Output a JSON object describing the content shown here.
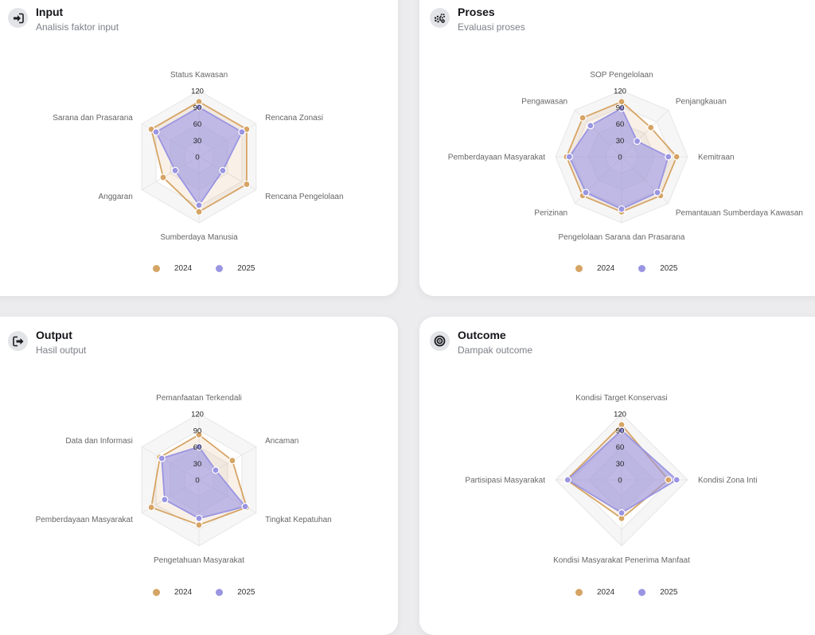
{
  "legend": [
    "2024",
    "2025"
  ],
  "colors": {
    "y2024": "#d6a465",
    "y2025": "#9a95e2"
  },
  "cards": [
    {
      "title": "Input",
      "subtitle": "Analisis faktor input",
      "icon": "sign-in-icon"
    },
    {
      "title": "Proses",
      "subtitle": "Evaluasi proses",
      "icon": "gears-icon"
    },
    {
      "title": "Output",
      "subtitle": "Hasil output",
      "icon": "sign-out-icon"
    },
    {
      "title": "Outcome",
      "subtitle": "Dampak outcome",
      "icon": "target-icon"
    }
  ],
  "chart_data": [
    {
      "type": "radar",
      "categories": [
        "Status Kawasan",
        "Rencana Zonasi",
        "Rencana Pengelolaan",
        "Sumberdaya Manusia",
        "Anggaran",
        "Sarana dan Prasarana"
      ],
      "ticks": [
        "0",
        "30",
        "60",
        "90",
        "120"
      ],
      "rmax": 120,
      "series": [
        {
          "name": "2024",
          "values": [
            100,
            100,
            100,
            100,
            75,
            100
          ]
        },
        {
          "name": "2025",
          "values": [
            90,
            90,
            50,
            88,
            50,
            90
          ]
        }
      ]
    },
    {
      "type": "radar",
      "categories": [
        "SOP Pengelolaan",
        "Penjangkauan",
        "Kemitraan",
        "Pemantauan Sumberdaya Kawasan",
        "Pengelolaan Sarana dan Prasarana",
        "Perizinan",
        "Pemberdayaan Masyarakat",
        "Pengawasan"
      ],
      "ticks": [
        "0",
        "30",
        "60",
        "90",
        "120"
      ],
      "rmax": 120,
      "series": [
        {
          "name": "2024",
          "values": [
            100,
            75,
            100,
            100,
            100,
            100,
            100,
            100
          ]
        },
        {
          "name": "2025",
          "values": [
            88,
            40,
            85,
            92,
            95,
            92,
            95,
            80
          ]
        }
      ]
    },
    {
      "type": "radar",
      "categories": [
        "Pemanfaatan Terkendali",
        "Ancaman",
        "Tingkat Kepatuhan",
        "Pengetahuan Masyarakat",
        "Pemberdayaan Masyarakat",
        "Data dan Informasi"
      ],
      "ticks": [
        "0",
        "30",
        "60",
        "90",
        "120"
      ],
      "rmax": 120,
      "series": [
        {
          "name": "2024",
          "values": [
            82,
            70,
            100,
            82,
            100,
            82
          ]
        },
        {
          "name": "2025",
          "values": [
            60,
            35,
            97,
            70,
            72,
            78
          ]
        }
      ]
    },
    {
      "type": "radar",
      "categories": [
        "Kondisi Target Konservasi",
        "Kondisi Zona Inti",
        "Kondisi Masyarakat Penerima Manfaat",
        "Partisipasi Masyarakat"
      ],
      "ticks": [
        "0",
        "30",
        "60",
        "90",
        "120"
      ],
      "rmax": 120,
      "series": [
        {
          "name": "2024",
          "values": [
            100,
            85,
            70,
            100
          ]
        },
        {
          "name": "2025",
          "values": [
            90,
            100,
            60,
            98
          ]
        }
      ]
    }
  ]
}
